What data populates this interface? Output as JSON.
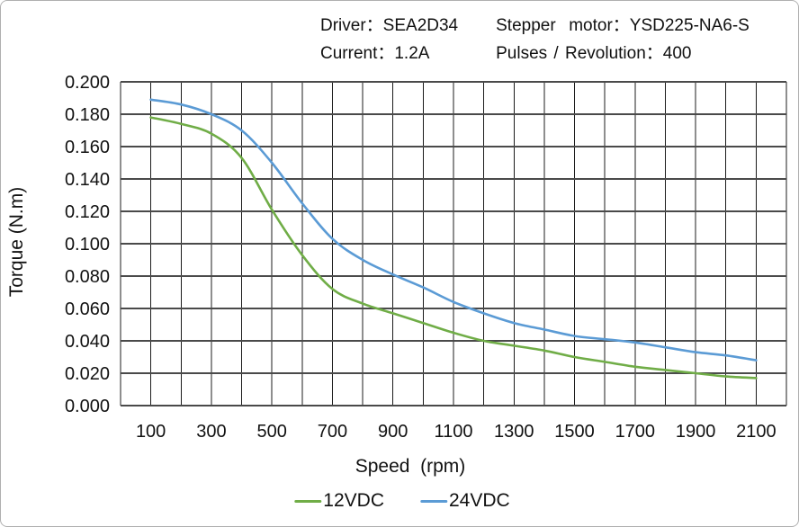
{
  "specs": {
    "driver_label": "Driver：",
    "driver_value": "SEA2D34",
    "motor_label": "Stepper  motor：",
    "motor_value": "YSD225-NA6-S",
    "current_label": "Current：",
    "current_value": "1.2A",
    "pulses_label": "Pulses / Revolution：",
    "pulses_value": "400"
  },
  "chart_data": {
    "type": "line",
    "title": "",
    "xlabel": "Speed  (rpm)",
    "ylabel": "Torque (N.m)",
    "xlim": [
      0,
      2200
    ],
    "ylim": [
      0,
      0.2
    ],
    "x_grid_step": 100,
    "y_grid_step": 0.02,
    "grid": true,
    "legend_position": "bottom",
    "x_ticks": [
      100,
      300,
      500,
      700,
      900,
      1100,
      1300,
      1500,
      1700,
      1900,
      2100
    ],
    "y_tick_format_decimals": 3,
    "x": [
      100,
      200,
      300,
      400,
      500,
      600,
      700,
      800,
      900,
      1000,
      1100,
      1200,
      1300,
      1400,
      1500,
      1600,
      1700,
      1800,
      1900,
      2000,
      2100
    ],
    "series": [
      {
        "name": "12VDC",
        "color": "#70AD47",
        "values": [
          0.178,
          0.174,
          0.168,
          0.153,
          0.121,
          0.093,
          0.072,
          0.063,
          0.057,
          0.051,
          0.045,
          0.04,
          0.037,
          0.034,
          0.03,
          0.027,
          0.024,
          0.022,
          0.02,
          0.018,
          0.017
        ]
      },
      {
        "name": "24VDC",
        "color": "#5B9BD5",
        "values": [
          0.189,
          0.186,
          0.18,
          0.17,
          0.15,
          0.125,
          0.103,
          0.09,
          0.081,
          0.073,
          0.064,
          0.057,
          0.051,
          0.047,
          0.043,
          0.041,
          0.039,
          0.036,
          0.033,
          0.031,
          0.028
        ]
      }
    ],
    "grid_color_vertical": "#1c1c1c",
    "grid_color_horizontal": "#4a4a4a",
    "text_color": "#111111"
  }
}
